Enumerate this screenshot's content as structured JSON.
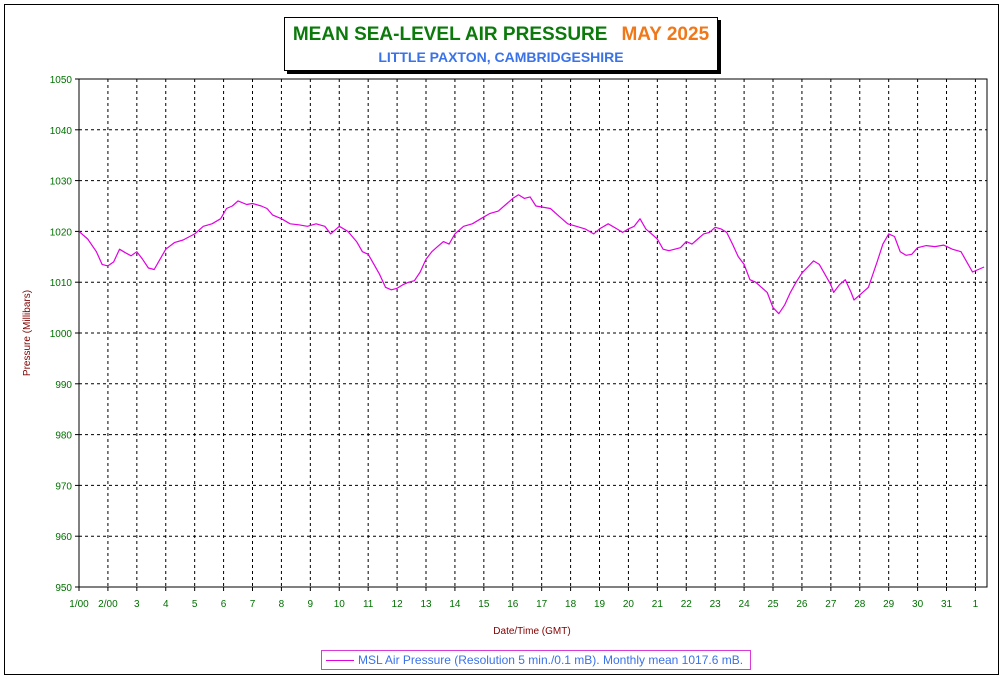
{
  "title": {
    "main": "MEAN SEA-LEVEL AIR PRESSURE",
    "month": "MAY 2025",
    "subtitle": "LITTLE PAXTON, CAMBRIDGESHIRE"
  },
  "legend": {
    "label": "MSL Air Pressure (Resolution 5 min./0.1 mB). Monthly mean 1017.6 mB."
  },
  "colors": {
    "title": "#0b7a0b",
    "month": "#f07818",
    "subtitle": "#3a72e8",
    "series": "#e000e0",
    "axis_label": "#800000",
    "tick_label": "#007000"
  },
  "chart_data": {
    "type": "line",
    "title": "MEAN SEA-LEVEL AIR PRESSURE",
    "subtitle": "LITTLE PAXTON, CAMBRIDGESHIRE",
    "xlabel": "Date/Time (GMT)",
    "ylabel": "Pressure (Millibars)",
    "ylim": [
      950,
      1050
    ],
    "xlim": [
      1,
      32.4
    ],
    "grid": true,
    "legend_position": "bottom",
    "y_ticks": [
      950,
      960,
      970,
      980,
      990,
      1000,
      1010,
      1020,
      1030,
      1040,
      1050
    ],
    "x_ticks": [
      {
        "x": 1,
        "label": "1/00"
      },
      {
        "x": 2,
        "label": "2/00"
      },
      {
        "x": 3,
        "label": "3"
      },
      {
        "x": 4,
        "label": "4"
      },
      {
        "x": 5,
        "label": "5"
      },
      {
        "x": 6,
        "label": "6"
      },
      {
        "x": 7,
        "label": "7"
      },
      {
        "x": 8,
        "label": "8"
      },
      {
        "x": 9,
        "label": "9"
      },
      {
        "x": 10,
        "label": "10"
      },
      {
        "x": 11,
        "label": "11"
      },
      {
        "x": 12,
        "label": "12"
      },
      {
        "x": 13,
        "label": "13"
      },
      {
        "x": 14,
        "label": "14"
      },
      {
        "x": 15,
        "label": "15"
      },
      {
        "x": 16,
        "label": "16"
      },
      {
        "x": 17,
        "label": "17"
      },
      {
        "x": 18,
        "label": "18"
      },
      {
        "x": 19,
        "label": "19"
      },
      {
        "x": 20,
        "label": "20"
      },
      {
        "x": 21,
        "label": "21"
      },
      {
        "x": 22,
        "label": "22"
      },
      {
        "x": 23,
        "label": "23"
      },
      {
        "x": 24,
        "label": "24"
      },
      {
        "x": 25,
        "label": "25"
      },
      {
        "x": 26,
        "label": "26"
      },
      {
        "x": 27,
        "label": "27"
      },
      {
        "x": 28,
        "label": "28"
      },
      {
        "x": 29,
        "label": "29"
      },
      {
        "x": 30,
        "label": "30"
      },
      {
        "x": 31,
        "label": "31"
      },
      {
        "x": 32,
        "label": "1"
      }
    ],
    "series": [
      {
        "name": "MSL Air Pressure (Resolution 5 min./0.1 mB). Monthly mean 1017.6 mB.",
        "color": "#e000e0",
        "points": [
          [
            1.0,
            1020.0
          ],
          [
            1.3,
            1018.5
          ],
          [
            1.6,
            1016.0
          ],
          [
            1.8,
            1013.5
          ],
          [
            2.0,
            1013.2
          ],
          [
            2.2,
            1014.0
          ],
          [
            2.4,
            1016.5
          ],
          [
            2.6,
            1015.8
          ],
          [
            2.8,
            1015.2
          ],
          [
            3.0,
            1016.0
          ],
          [
            3.2,
            1014.5
          ],
          [
            3.4,
            1012.8
          ],
          [
            3.6,
            1012.5
          ],
          [
            3.8,
            1014.5
          ],
          [
            4.0,
            1016.5
          ],
          [
            4.3,
            1017.8
          ],
          [
            4.6,
            1018.3
          ],
          [
            5.0,
            1019.5
          ],
          [
            5.3,
            1021.0
          ],
          [
            5.6,
            1021.5
          ],
          [
            5.9,
            1022.5
          ],
          [
            6.1,
            1024.5
          ],
          [
            6.3,
            1025.0
          ],
          [
            6.5,
            1026.0
          ],
          [
            6.8,
            1025.3
          ],
          [
            7.0,
            1025.5
          ],
          [
            7.3,
            1025.0
          ],
          [
            7.5,
            1024.5
          ],
          [
            7.7,
            1023.2
          ],
          [
            8.0,
            1022.5
          ],
          [
            8.3,
            1021.5
          ],
          [
            8.6,
            1021.3
          ],
          [
            8.9,
            1021.0
          ],
          [
            9.2,
            1021.5
          ],
          [
            9.5,
            1021.0
          ],
          [
            9.7,
            1019.5
          ],
          [
            10.0,
            1021.0
          ],
          [
            10.3,
            1020.0
          ],
          [
            10.6,
            1018.0
          ],
          [
            10.8,
            1016.0
          ],
          [
            11.0,
            1015.5
          ],
          [
            11.2,
            1013.5
          ],
          [
            11.4,
            1011.5
          ],
          [
            11.6,
            1009.0
          ],
          [
            11.8,
            1008.5
          ],
          [
            12.0,
            1008.8
          ],
          [
            12.2,
            1009.5
          ],
          [
            12.4,
            1010.0
          ],
          [
            12.6,
            1010.3
          ],
          [
            12.8,
            1012.0
          ],
          [
            13.0,
            1014.5
          ],
          [
            13.2,
            1016.0
          ],
          [
            13.4,
            1017.0
          ],
          [
            13.6,
            1018.0
          ],
          [
            13.8,
            1017.5
          ],
          [
            14.0,
            1019.5
          ],
          [
            14.3,
            1021.0
          ],
          [
            14.6,
            1021.5
          ],
          [
            14.9,
            1022.5
          ],
          [
            15.2,
            1023.5
          ],
          [
            15.5,
            1024.0
          ],
          [
            15.8,
            1025.5
          ],
          [
            16.0,
            1026.5
          ],
          [
            16.2,
            1027.2
          ],
          [
            16.4,
            1026.5
          ],
          [
            16.6,
            1026.8
          ],
          [
            16.8,
            1025.0
          ],
          [
            17.0,
            1024.8
          ],
          [
            17.3,
            1024.5
          ],
          [
            17.6,
            1023.0
          ],
          [
            17.9,
            1021.5
          ],
          [
            18.2,
            1021.0
          ],
          [
            18.5,
            1020.5
          ],
          [
            18.8,
            1019.5
          ],
          [
            19.0,
            1020.5
          ],
          [
            19.3,
            1021.5
          ],
          [
            19.6,
            1020.5
          ],
          [
            19.8,
            1019.8
          ],
          [
            20.0,
            1020.5
          ],
          [
            20.2,
            1021.0
          ],
          [
            20.4,
            1022.5
          ],
          [
            20.6,
            1020.5
          ],
          [
            20.8,
            1019.5
          ],
          [
            21.0,
            1018.5
          ],
          [
            21.2,
            1016.5
          ],
          [
            21.4,
            1016.2
          ],
          [
            21.6,
            1016.5
          ],
          [
            21.8,
            1016.8
          ],
          [
            22.0,
            1018.0
          ],
          [
            22.2,
            1017.5
          ],
          [
            22.4,
            1018.5
          ],
          [
            22.6,
            1019.5
          ],
          [
            22.8,
            1019.8
          ],
          [
            23.0,
            1020.8
          ],
          [
            23.2,
            1020.5
          ],
          [
            23.4,
            1019.8
          ],
          [
            23.6,
            1017.5
          ],
          [
            23.8,
            1015.0
          ],
          [
            24.0,
            1013.5
          ],
          [
            24.2,
            1010.5
          ],
          [
            24.4,
            1010.0
          ],
          [
            24.6,
            1009.0
          ],
          [
            24.8,
            1008.0
          ],
          [
            25.0,
            1005.0
          ],
          [
            25.2,
            1003.8
          ],
          [
            25.4,
            1005.5
          ],
          [
            25.6,
            1008.0
          ],
          [
            25.8,
            1010.0
          ],
          [
            26.0,
            1011.8
          ],
          [
            26.2,
            1013.0
          ],
          [
            26.4,
            1014.2
          ],
          [
            26.6,
            1013.5
          ],
          [
            26.8,
            1011.5
          ],
          [
            27.0,
            1009.5
          ],
          [
            27.1,
            1008.0
          ],
          [
            27.3,
            1009.5
          ],
          [
            27.5,
            1010.5
          ],
          [
            27.7,
            1008.0
          ],
          [
            27.8,
            1006.5
          ],
          [
            28.0,
            1007.5
          ],
          [
            28.3,
            1009.0
          ],
          [
            28.6,
            1014.0
          ],
          [
            28.8,
            1017.5
          ],
          [
            29.0,
            1019.5
          ],
          [
            29.2,
            1019.0
          ],
          [
            29.4,
            1016.0
          ],
          [
            29.6,
            1015.3
          ],
          [
            29.8,
            1015.5
          ],
          [
            30.0,
            1016.8
          ],
          [
            30.3,
            1017.2
          ],
          [
            30.6,
            1017.0
          ],
          [
            30.9,
            1017.3
          ],
          [
            31.2,
            1016.5
          ],
          [
            31.5,
            1016.0
          ],
          [
            31.7,
            1014.0
          ],
          [
            31.9,
            1012.0
          ],
          [
            32.1,
            1012.5
          ],
          [
            32.3,
            1013.0
          ]
        ]
      }
    ]
  }
}
